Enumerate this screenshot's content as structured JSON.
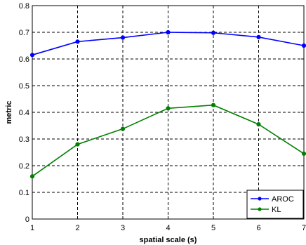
{
  "chart_data": {
    "type": "line",
    "title": "",
    "xlabel": "spatial scale (s)",
    "ylabel": "metric",
    "x": [
      1,
      2,
      3,
      4,
      5,
      6,
      7
    ],
    "xlim": [
      1,
      7
    ],
    "ylim": [
      0,
      0.8
    ],
    "xticks": [
      "1",
      "2",
      "3",
      "4",
      "5",
      "6",
      "7"
    ],
    "yticks": [
      "0",
      "0.1",
      "0.2",
      "0.3",
      "0.4",
      "0.5",
      "0.6",
      "0.7",
      "0.8"
    ],
    "grid": true,
    "legend_position": "bottom-right",
    "series": [
      {
        "name": "AROC",
        "color": "#0000ff",
        "values": [
          0.615,
          0.665,
          0.68,
          0.7,
          0.698,
          0.682,
          0.65
        ]
      },
      {
        "name": "KL",
        "color": "#008000",
        "values": [
          0.16,
          0.28,
          0.338,
          0.415,
          0.427,
          0.355,
          0.245
        ]
      }
    ]
  }
}
